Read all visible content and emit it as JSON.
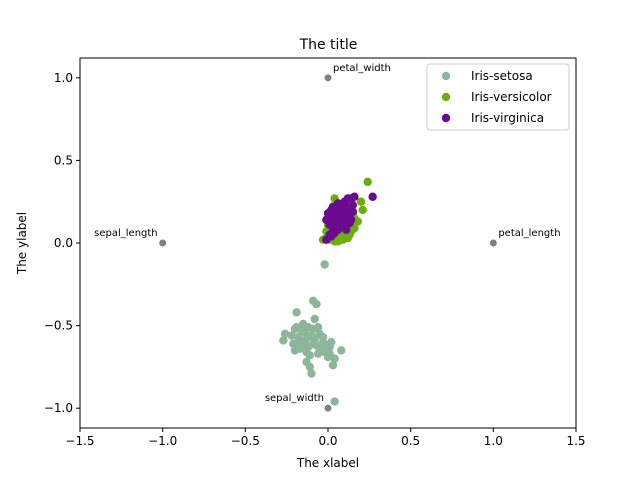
{
  "chart_data": {
    "type": "scatter",
    "title": "The title",
    "xlabel": "The xlabel",
    "ylabel": "The ylabel",
    "xlim": [
      -1.5,
      1.5
    ],
    "ylim": [
      -1.12,
      1.12
    ],
    "xticks": [
      -1.5,
      -1.0,
      -0.5,
      0.0,
      0.5,
      1.0,
      1.5
    ],
    "yticks": [
      -1.0,
      -0.5,
      0.0,
      0.5,
      1.0
    ],
    "xtick_labels": [
      "−1.5",
      "−1.0",
      "−0.5",
      "0.0",
      "0.5",
      "1.0",
      "1.5"
    ],
    "ytick_labels": [
      "−1.0",
      "−0.5",
      "0.0",
      "0.5",
      "1.0"
    ],
    "grid": false,
    "legend_position": "top-right",
    "anchors": [
      {
        "label": "petal_width",
        "x": 0.0,
        "y": 1.0
      },
      {
        "label": "sepal_length",
        "x": -1.0,
        "y": 0.0
      },
      {
        "label": "petal_length",
        "x": 1.0,
        "y": 0.0
      },
      {
        "label": "sepal_width",
        "x": 0.0,
        "y": -1.0
      }
    ],
    "anchor_color": "#808080",
    "series": [
      {
        "name": "Iris-setosa",
        "color": "#8db59a",
        "points": [
          [
            -0.02,
            -0.13
          ],
          [
            -0.19,
            -0.42
          ],
          [
            -0.09,
            -0.35
          ],
          [
            -0.07,
            -0.37
          ],
          [
            -0.27,
            -0.59
          ],
          [
            -0.26,
            -0.55
          ],
          [
            -0.21,
            -0.61
          ],
          [
            -0.2,
            -0.65
          ],
          [
            -0.18,
            -0.57
          ],
          [
            -0.16,
            -0.53
          ],
          [
            -0.14,
            -0.6
          ],
          [
            -0.12,
            -0.63
          ],
          [
            -0.1,
            -0.56
          ],
          [
            -0.12,
            -0.51
          ],
          [
            -0.08,
            -0.46
          ],
          [
            -0.06,
            -0.51
          ],
          [
            -0.03,
            -0.57
          ],
          [
            -0.01,
            -0.62
          ],
          [
            0.02,
            -0.6
          ],
          [
            0.04,
            -0.7
          ],
          [
            0.08,
            -0.65
          ],
          [
            0.03,
            -0.74
          ],
          [
            -0.13,
            -0.72
          ],
          [
            -0.11,
            -0.75
          ],
          [
            -0.1,
            -0.79
          ],
          [
            -0.06,
            -0.67
          ],
          [
            -0.04,
            -0.64
          ],
          [
            -0.15,
            -0.59
          ],
          [
            -0.17,
            -0.64
          ],
          [
            -0.22,
            -0.56
          ],
          [
            -0.19,
            -0.51
          ],
          [
            -0.14,
            -0.54
          ],
          [
            -0.11,
            -0.68
          ],
          [
            -0.09,
            -0.61
          ],
          [
            -0.05,
            -0.55
          ],
          [
            -0.02,
            -0.66
          ],
          [
            0.0,
            -0.69
          ],
          [
            0.01,
            -0.63
          ],
          [
            -0.18,
            -0.6
          ],
          [
            -0.08,
            -0.58
          ],
          [
            -0.12,
            -0.57
          ],
          [
            -0.16,
            -0.62
          ],
          [
            0.04,
            -0.96
          ],
          [
            -0.2,
            -0.52
          ],
          [
            -0.03,
            -0.6
          ],
          [
            -0.07,
            -0.62
          ],
          [
            -0.13,
            -0.66
          ],
          [
            -0.15,
            -0.49
          ],
          [
            -0.09,
            -0.52
          ],
          [
            0.01,
            -0.67
          ]
        ]
      },
      {
        "name": "Iris-versicolor",
        "color": "#6aaf0b",
        "points": [
          [
            0.24,
            0.37
          ],
          [
            0.2,
            0.25
          ],
          [
            0.21,
            0.2
          ],
          [
            0.04,
            0.27
          ],
          [
            0.15,
            0.18
          ],
          [
            0.18,
            0.13
          ],
          [
            0.16,
            0.09
          ],
          [
            0.1,
            0.16
          ],
          [
            0.08,
            0.12
          ],
          [
            0.06,
            0.09
          ],
          [
            0.03,
            0.13
          ],
          [
            0.02,
            0.08
          ],
          [
            0.0,
            0.06
          ],
          [
            -0.01,
            0.03
          ],
          [
            -0.03,
            0.02
          ],
          [
            0.01,
            0.02
          ],
          [
            0.05,
            0.04
          ],
          [
            0.07,
            0.06
          ],
          [
            0.11,
            0.05
          ],
          [
            0.13,
            0.1
          ],
          [
            0.09,
            0.02
          ],
          [
            0.06,
            0.03
          ],
          [
            0.04,
            0.01
          ],
          [
            0.02,
            0.05
          ],
          [
            0.0,
            0.11
          ],
          [
            0.12,
            0.14
          ],
          [
            0.14,
            0.07
          ],
          [
            0.1,
            0.09
          ],
          [
            0.08,
            0.18
          ],
          [
            0.05,
            0.16
          ],
          [
            0.03,
            0.19
          ],
          [
            0.01,
            0.14
          ],
          [
            -0.01,
            0.07
          ],
          [
            0.07,
            0.21
          ],
          [
            0.09,
            0.04
          ],
          [
            0.11,
            0.12
          ],
          [
            0.04,
            0.1
          ],
          [
            0.06,
            0.14
          ],
          [
            0.15,
            0.12
          ],
          [
            0.02,
            0.11
          ],
          [
            0.13,
            0.05
          ],
          [
            0.08,
            0.07
          ],
          [
            0.05,
            0.06
          ],
          [
            0.16,
            0.15
          ],
          [
            0.12,
            0.03
          ],
          [
            0.1,
            0.13
          ],
          [
            0.07,
            0.1
          ],
          [
            0.03,
            0.06
          ],
          [
            0.09,
            0.15
          ],
          [
            0.06,
            0.01
          ]
        ]
      },
      {
        "name": "Iris-virginica",
        "color": "#6a0a8c",
        "points": [
          [
            0.27,
            0.28
          ],
          [
            0.16,
            0.28
          ],
          [
            0.14,
            0.27
          ],
          [
            0.12,
            0.22
          ],
          [
            0.1,
            0.2
          ],
          [
            0.08,
            0.23
          ],
          [
            0.06,
            0.21
          ],
          [
            0.04,
            0.19
          ],
          [
            0.03,
            0.22
          ],
          [
            0.02,
            0.17
          ],
          [
            0.0,
            0.15
          ],
          [
            -0.01,
            0.14
          ],
          [
            0.01,
            0.11
          ],
          [
            0.03,
            0.13
          ],
          [
            0.05,
            0.15
          ],
          [
            0.07,
            0.17
          ],
          [
            0.09,
            0.16
          ],
          [
            0.11,
            0.18
          ],
          [
            0.13,
            0.2
          ],
          [
            0.15,
            0.19
          ],
          [
            0.13,
            0.12
          ],
          [
            0.11,
            0.14
          ],
          [
            0.09,
            0.11
          ],
          [
            0.07,
            0.12
          ],
          [
            0.05,
            0.09
          ],
          [
            0.03,
            0.07
          ],
          [
            0.01,
            0.05
          ],
          [
            -0.01,
            0.02
          ],
          [
            0.02,
            0.04
          ],
          [
            0.04,
            0.06
          ],
          [
            0.06,
            0.08
          ],
          [
            0.08,
            0.1
          ],
          [
            0.1,
            0.12
          ],
          [
            0.12,
            0.16
          ],
          [
            0.14,
            0.14
          ],
          [
            0.06,
            0.24
          ],
          [
            0.08,
            0.19
          ],
          [
            0.1,
            0.25
          ],
          [
            0.12,
            0.27
          ],
          [
            0.02,
            0.2
          ],
          [
            0.04,
            0.16
          ],
          [
            0.0,
            0.18
          ],
          [
            0.15,
            0.23
          ],
          [
            0.11,
            0.08
          ],
          [
            0.09,
            0.21
          ],
          [
            0.05,
            0.18
          ],
          [
            0.07,
            0.14
          ],
          [
            0.13,
            0.17
          ],
          [
            0.03,
            0.1
          ],
          [
            0.06,
            0.13
          ]
        ]
      }
    ]
  }
}
